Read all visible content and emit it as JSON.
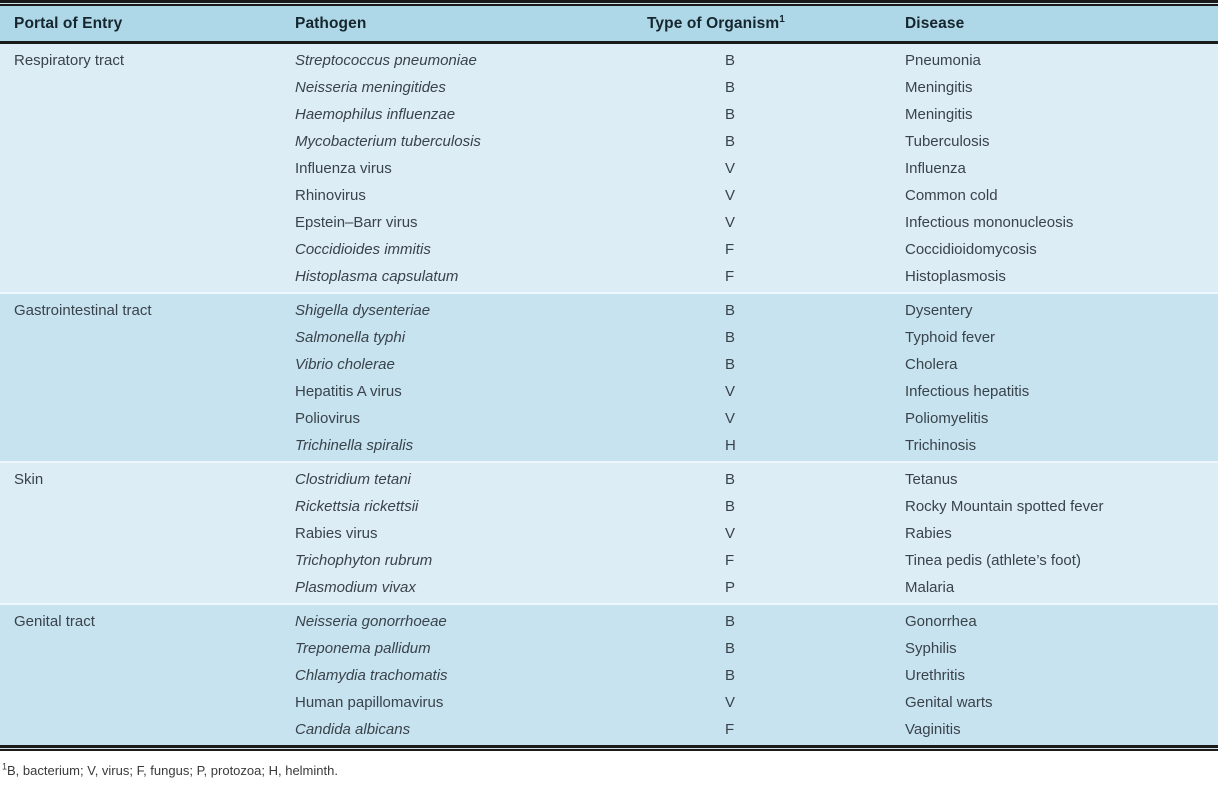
{
  "table": {
    "columns": [
      "Portal of Entry",
      "Pathogen",
      "Type of Organism",
      "Disease"
    ],
    "organism_superscript": "1",
    "sections": [
      {
        "portal": "Respiratory tract",
        "rows": [
          {
            "pathogen": "Streptococcus pneumoniae",
            "italic": true,
            "organism": "B",
            "disease": "Pneumonia"
          },
          {
            "pathogen": "Neisseria meningitides",
            "italic": true,
            "organism": "B",
            "disease": "Meningitis"
          },
          {
            "pathogen": "Haemophilus influenzae",
            "italic": true,
            "organism": "B",
            "disease": "Meningitis"
          },
          {
            "pathogen": "Mycobacterium tuberculosis",
            "italic": true,
            "organism": "B",
            "disease": "Tuberculosis"
          },
          {
            "pathogen": "Influenza virus",
            "italic": false,
            "organism": "V",
            "disease": "Influenza"
          },
          {
            "pathogen": "Rhinovirus",
            "italic": false,
            "organism": "V",
            "disease": "Common cold"
          },
          {
            "pathogen": "Epstein–Barr virus",
            "italic": false,
            "organism": "V",
            "disease": "Infectious mononucleosis"
          },
          {
            "pathogen": "Coccidioides immitis",
            "italic": true,
            "organism": "F",
            "disease": "Coccidioidomycosis"
          },
          {
            "pathogen": "Histoplasma capsulatum",
            "italic": true,
            "organism": "F",
            "disease": "Histoplasmosis"
          }
        ]
      },
      {
        "portal": "Gastrointestinal tract",
        "rows": [
          {
            "pathogen": "Shigella dysenteriae",
            "italic": true,
            "organism": "B",
            "disease": "Dysentery"
          },
          {
            "pathogen": "Salmonella typhi",
            "italic": true,
            "organism": "B",
            "disease": "Typhoid fever"
          },
          {
            "pathogen": "Vibrio cholerae",
            "italic": true,
            "organism": "B",
            "disease": "Cholera"
          },
          {
            "pathogen": "Hepatitis A virus",
            "italic": false,
            "organism": "V",
            "disease": "Infectious hepatitis"
          },
          {
            "pathogen": "Poliovirus",
            "italic": false,
            "organism": "V",
            "disease": "Poliomyelitis"
          },
          {
            "pathogen": "Trichinella spiralis",
            "italic": true,
            "organism": "H",
            "disease": "Trichinosis"
          }
        ]
      },
      {
        "portal": "Skin",
        "rows": [
          {
            "pathogen": "Clostridium tetani",
            "italic": true,
            "organism": "B",
            "disease": "Tetanus"
          },
          {
            "pathogen": "Rickettsia rickettsii",
            "italic": true,
            "organism": "B",
            "disease": "Rocky Mountain spotted fever"
          },
          {
            "pathogen": "Rabies virus",
            "italic": false,
            "organism": "V",
            "disease": "Rabies"
          },
          {
            "pathogen": "Trichophyton rubrum",
            "italic": true,
            "organism": "F",
            "disease": "Tinea pedis (athlete’s foot)"
          },
          {
            "pathogen": "Plasmodium vivax",
            "italic": true,
            "organism": "P",
            "disease": "Malaria"
          }
        ]
      },
      {
        "portal": "Genital tract",
        "rows": [
          {
            "pathogen": "Neisseria gonorrhoeae",
            "italic": true,
            "organism": "B",
            "disease": "Gonorrhea"
          },
          {
            "pathogen": "Treponema pallidum",
            "italic": true,
            "organism": "B",
            "disease": "Syphilis"
          },
          {
            "pathogen": "Chlamydia trachomatis",
            "italic": true,
            "organism": "B",
            "disease": "Urethritis"
          },
          {
            "pathogen": "Human papillomavirus",
            "italic": false,
            "organism": "V",
            "disease": "Genital warts"
          },
          {
            "pathogen": "Candida albicans",
            "italic": true,
            "organism": "F",
            "disease": "Vaginitis"
          }
        ]
      }
    ]
  },
  "footnote": {
    "superscript": "1",
    "text": "B, bacterium; V, virus; F, fungus; P, protozoa; H, helminth."
  },
  "colors": {
    "header_bg": "#aed8e8",
    "section_light": "#ddedf6",
    "section_dark": "#c8e3f0",
    "border": "#1a1a1a",
    "header_text": "#16262e",
    "text": "#39434a"
  }
}
